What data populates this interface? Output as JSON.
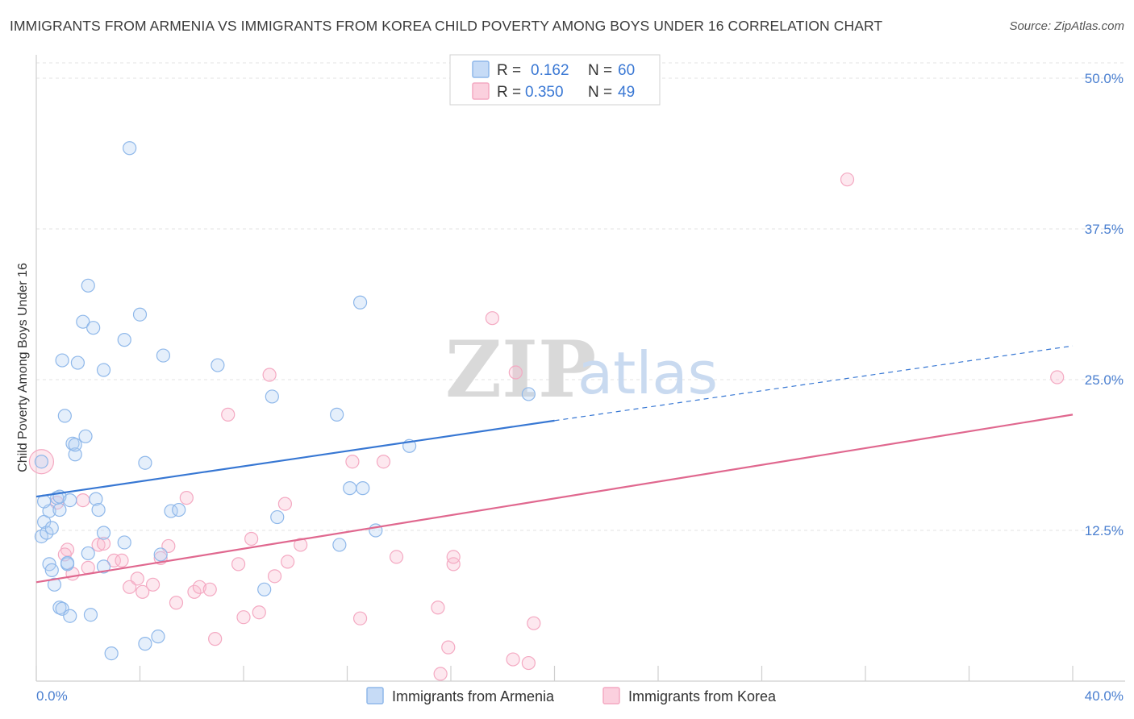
{
  "header": {
    "title": "IMMIGRANTS FROM ARMENIA VS IMMIGRANTS FROM KOREA CHILD POVERTY AMONG BOYS UNDER 16 CORRELATION CHART",
    "source": "Source: ZipAtlas.com"
  },
  "watermark": {
    "zip": "ZIP",
    "atlas": "atlas"
  },
  "legend": {
    "rows": [
      {
        "r_label": "R =",
        "r_value": "0.162",
        "n_label": "N =",
        "n_value": "60"
      },
      {
        "r_label": "R =",
        "r_value": "0.350",
        "n_label": "N =",
        "n_value": "49"
      }
    ]
  },
  "chart_data": {
    "type": "scatter",
    "title": "IMMIGRANTS FROM ARMENIA VS IMMIGRANTS FROM KOREA CHILD POVERTY AMONG BOYS UNDER 16 CORRELATION CHART",
    "xlabel": "",
    "ylabel": "Child Poverty Among Boys Under 16",
    "xlim": [
      0,
      40
    ],
    "ylim": [
      0,
      50
    ],
    "x_tick_labels": [
      "0.0%",
      "40.0%"
    ],
    "y_ticks": [
      {
        "value": 12.5,
        "label": "12.5%"
      },
      {
        "value": 25.0,
        "label": "25.0%"
      },
      {
        "value": 37.5,
        "label": "37.5%"
      },
      {
        "value": 50.0,
        "label": "50.0%"
      }
    ],
    "grid": true,
    "legend_position": "top-center",
    "series": [
      {
        "name": "Immigrants from Armenia",
        "color": "#8fb8ea",
        "line_color": "#3777d3",
        "trend": {
          "x0": 0,
          "y0": 15.3,
          "x1": 20,
          "y1": 21.6,
          "dash_to_x": 40,
          "dash_to_y": 27.8
        },
        "points": [
          [
            0.2,
            18.2
          ],
          [
            0.3,
            13.2
          ],
          [
            0.2,
            12.0
          ],
          [
            0.4,
            12.3
          ],
          [
            0.5,
            14.1
          ],
          [
            0.5,
            9.7
          ],
          [
            0.6,
            12.7
          ],
          [
            0.6,
            9.2
          ],
          [
            0.7,
            8.0
          ],
          [
            0.8,
            15.2
          ],
          [
            0.9,
            15.3
          ],
          [
            0.9,
            14.2
          ],
          [
            0.9,
            6.1
          ],
          [
            1.0,
            26.6
          ],
          [
            1.0,
            6.0
          ],
          [
            1.1,
            22.0
          ],
          [
            1.2,
            9.7
          ],
          [
            1.2,
            9.8
          ],
          [
            1.3,
            15.0
          ],
          [
            1.3,
            5.4
          ],
          [
            1.4,
            19.7
          ],
          [
            1.5,
            18.8
          ],
          [
            1.5,
            19.6
          ],
          [
            1.6,
            26.4
          ],
          [
            1.8,
            29.8
          ],
          [
            1.9,
            20.3
          ],
          [
            2.0,
            10.6
          ],
          [
            2.0,
            32.8
          ],
          [
            2.1,
            5.5
          ],
          [
            2.2,
            29.3
          ],
          [
            2.3,
            15.1
          ],
          [
            2.4,
            14.2
          ],
          [
            2.6,
            25.8
          ],
          [
            2.6,
            12.3
          ],
          [
            2.6,
            9.5
          ],
          [
            2.9,
            2.3
          ],
          [
            3.4,
            28.3
          ],
          [
            3.4,
            11.5
          ],
          [
            3.6,
            44.2
          ],
          [
            4.0,
            30.4
          ],
          [
            4.2,
            3.1
          ],
          [
            4.2,
            18.1
          ],
          [
            4.7,
            3.7
          ],
          [
            4.8,
            10.5
          ],
          [
            4.9,
            27.0
          ],
          [
            5.2,
            14.1
          ],
          [
            5.5,
            14.2
          ],
          [
            7.0,
            26.2
          ],
          [
            8.8,
            7.6
          ],
          [
            9.1,
            23.6
          ],
          [
            9.3,
            13.6
          ],
          [
            11.6,
            22.1
          ],
          [
            11.7,
            11.3
          ],
          [
            12.1,
            16.0
          ],
          [
            12.6,
            16.0
          ],
          [
            12.5,
            31.4
          ],
          [
            13.1,
            12.5
          ],
          [
            14.4,
            19.5
          ],
          [
            19.0,
            23.8
          ],
          [
            0.3,
            14.9
          ]
        ]
      },
      {
        "name": "Immigrants from Korea",
        "color": "#f4a9c2",
        "line_color": "#e0688f",
        "trend": {
          "x0": 0,
          "y0": 8.2,
          "x1": 40,
          "y1": 22.1
        },
        "points": [
          [
            0.2,
            18.2
          ],
          [
            0.8,
            14.8
          ],
          [
            1.2,
            10.9
          ],
          [
            1.4,
            8.9
          ],
          [
            1.8,
            15.0
          ],
          [
            2.0,
            9.4
          ],
          [
            2.4,
            11.3
          ],
          [
            2.6,
            11.4
          ],
          [
            3.0,
            10.0
          ],
          [
            3.3,
            10.0
          ],
          [
            3.6,
            7.8
          ],
          [
            3.9,
            8.5
          ],
          [
            4.1,
            7.4
          ],
          [
            4.5,
            8.0
          ],
          [
            4.8,
            10.2
          ],
          [
            5.1,
            11.2
          ],
          [
            5.4,
            6.5
          ],
          [
            5.8,
            15.2
          ],
          [
            6.1,
            7.4
          ],
          [
            6.3,
            7.8
          ],
          [
            6.7,
            7.6
          ],
          [
            6.9,
            3.5
          ],
          [
            7.4,
            22.1
          ],
          [
            7.8,
            9.7
          ],
          [
            8.0,
            5.3
          ],
          [
            8.3,
            11.8
          ],
          [
            8.6,
            5.7
          ],
          [
            9.0,
            25.4
          ],
          [
            9.2,
            8.7
          ],
          [
            9.6,
            14.7
          ],
          [
            9.7,
            9.9
          ],
          [
            10.2,
            11.3
          ],
          [
            12.2,
            18.2
          ],
          [
            12.5,
            5.2
          ],
          [
            13.4,
            18.2
          ],
          [
            13.9,
            10.3
          ],
          [
            15.5,
            6.1
          ],
          [
            15.6,
            0.6
          ],
          [
            15.9,
            2.8
          ],
          [
            16.1,
            9.7
          ],
          [
            16.1,
            10.3
          ],
          [
            17.6,
            30.1
          ],
          [
            18.4,
            1.8
          ],
          [
            18.5,
            25.6
          ],
          [
            19.0,
            1.5
          ],
          [
            19.2,
            4.8
          ],
          [
            31.3,
            41.6
          ],
          [
            39.4,
            25.2
          ],
          [
            1.1,
            10.5
          ]
        ]
      }
    ]
  },
  "bottom_legend": {
    "items": [
      "Immigrants from Armenia",
      "Immigrants from Korea"
    ]
  }
}
